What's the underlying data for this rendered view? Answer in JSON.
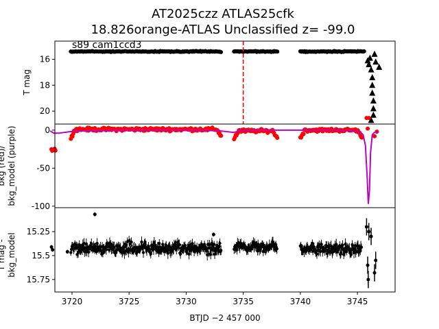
{
  "chart_data": [
    {
      "type": "scatter",
      "title_line1": "AT2025czz  ATLAS25cfk",
      "title_line2": "18.826orange-ATLAS Unclassified z= -99.0",
      "annotation": "s89 cam1ccd3",
      "ylabel": "T mag",
      "ylim": [
        21.0,
        14.6
      ],
      "yticks": [
        16,
        18,
        20
      ],
      "xlim": [
        3718.5,
        3748.3
      ],
      "vline_x": 3735.0,
      "vline_color": "#ff0000",
      "marker_color": "#000000",
      "segments": [
        {
          "x": [
            3719.9,
            3733.1
          ],
          "y": 15.4
        },
        {
          "x": [
            3734.2,
            3738.0
          ],
          "y": 15.4
        },
        {
          "x": [
            3740.0,
            3745.6
          ],
          "y": 15.4
        }
      ],
      "triangles": [
        {
          "x": 3745.9,
          "y": 16.1
        },
        {
          "x": 3746.0,
          "y": 16.4
        },
        {
          "x": 3746.1,
          "y": 15.9
        },
        {
          "x": 3746.2,
          "y": 16.8
        },
        {
          "x": 3746.3,
          "y": 17.4
        },
        {
          "x": 3746.3,
          "y": 18.0
        },
        {
          "x": 3746.3,
          "y": 18.6
        },
        {
          "x": 3746.4,
          "y": 19.2
        },
        {
          "x": 3746.4,
          "y": 19.8
        },
        {
          "x": 3746.4,
          "y": 20.3
        },
        {
          "x": 3746.2,
          "y": 20.7
        },
        {
          "x": 3746.6,
          "y": 16.2
        },
        {
          "x": 3746.9,
          "y": 16.6
        },
        {
          "x": 3746.5,
          "y": 15.6
        }
      ]
    },
    {
      "type": "line",
      "ylabel_line1": "bkg (red)/",
      "ylabel_line2": "bkg_model (purple)",
      "ylim": [
        -102,
        8
      ],
      "yticks": [
        0,
        -50,
        -100
      ],
      "xlim": [
        3718.5,
        3748.3
      ],
      "series": [
        {
          "color": "#ff0000",
          "marker": "dot"
        },
        {
          "color": "#bf00bf",
          "marker": "line"
        }
      ],
      "model_points": [
        [
          3718.1,
          -1
        ],
        [
          3718.4,
          -4
        ],
        [
          3718.9,
          -4
        ],
        [
          3719.3,
          -3
        ],
        [
          3719.8,
          -2
        ],
        [
          3720.5,
          -1
        ],
        [
          3722,
          -1
        ],
        [
          3725,
          0
        ],
        [
          3728,
          0
        ],
        [
          3731,
          0
        ],
        [
          3733.0,
          -1
        ],
        [
          3734.2,
          -3
        ],
        [
          3734.6,
          -1
        ],
        [
          3736,
          0
        ],
        [
          3738,
          0
        ],
        [
          3740,
          0
        ],
        [
          3743,
          0
        ],
        [
          3744.5,
          -1
        ],
        [
          3745.2,
          -2
        ],
        [
          3745.5,
          -6
        ],
        [
          3745.7,
          -20
        ],
        [
          3745.85,
          -60
        ],
        [
          3745.95,
          -97
        ],
        [
          3746.05,
          -80
        ],
        [
          3746.15,
          -30
        ],
        [
          3746.3,
          -6
        ],
        [
          3746.5,
          -3
        ],
        [
          3746.8,
          -3
        ]
      ],
      "bkg_segments": [
        {
          "x": [
            3718.2,
            3718.6
          ],
          "base": -16,
          "spread": 3
        },
        {
          "x": [
            3719.9,
            3733.1
          ],
          "base": 1,
          "spread": 3
        },
        {
          "x": [
            3734.2,
            3738.0
          ],
          "base": -1,
          "spread": 3
        },
        {
          "x": [
            3740.0,
            3745.4
          ],
          "base": 0,
          "spread": 3
        }
      ],
      "bkg_outliers": [
        [
          3745.8,
          16
        ],
        [
          3746.0,
          16
        ],
        [
          3745.9,
          2
        ],
        [
          3746.5,
          -8
        ],
        [
          3746.7,
          -2
        ]
      ]
    },
    {
      "type": "scatter",
      "ylabel_line1": "T mag -",
      "ylabel_line2": "bkg_model",
      "ylim": [
        15.88,
        15.0
      ],
      "yticks": [
        15.25,
        15.5,
        15.75
      ],
      "xlim": [
        3718.5,
        3748.3
      ],
      "xticks": [
        3720,
        3725,
        3730,
        3735,
        3740,
        3745
      ],
      "xlabel": "BTJD −2 457 000",
      "marker_color": "#000000",
      "segments": [
        {
          "x": [
            3719.9,
            3733.1
          ],
          "center": 15.42,
          "spread": 0.09
        },
        {
          "x": [
            3734.2,
            3738.0
          ],
          "center": 15.41,
          "spread": 0.07
        },
        {
          "x": [
            3740.0,
            3745.4
          ],
          "center": 15.43,
          "spread": 0.08
        }
      ],
      "sparse_points": [
        [
          3718.2,
          15.41
        ],
        [
          3718.3,
          15.44
        ],
        [
          3719.6,
          15.46
        ],
        [
          3722.0,
          15.07
        ],
        [
          3732.4,
          15.28
        ],
        [
          3745.8,
          15.2
        ],
        [
          3746.0,
          15.25
        ],
        [
          3746.2,
          15.3
        ],
        [
          3745.9,
          15.6
        ],
        [
          3746.6,
          15.55
        ],
        [
          3746.5,
          15.68
        ],
        [
          3745.95,
          15.75
        ]
      ]
    }
  ]
}
